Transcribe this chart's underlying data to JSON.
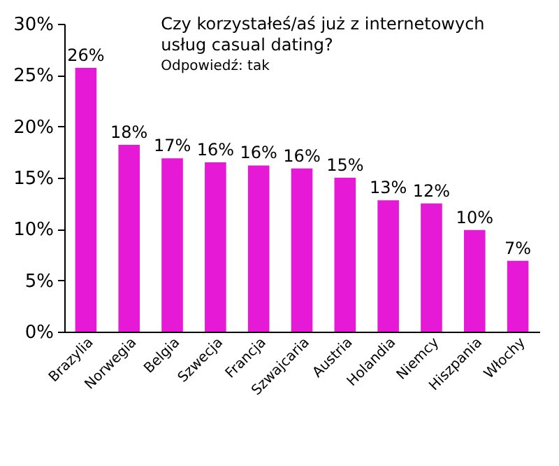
{
  "chart_data": {
    "type": "bar",
    "title": "Czy korzystałeś/aś już z internetowych usług casual dating?",
    "subtitle": "Odpowiedź: tak",
    "categories": [
      "Brazylia",
      "Norwegia",
      "Belgia",
      "Szwecja",
      "Francja",
      "Szwajcaria",
      "Austria",
      "Holandia",
      "Niemcy",
      "Hiszpania",
      "Włochy"
    ],
    "values": [
      25.7,
      18.2,
      16.9,
      16.5,
      16.2,
      15.9,
      15.0,
      12.8,
      12.5,
      9.9,
      6.9
    ],
    "value_labels": [
      "26%",
      "18%",
      "17%",
      "16%",
      "16%",
      "16%",
      "15%",
      "13%",
      "12%",
      "10%",
      "7%"
    ],
    "color": "#e619d6",
    "ylim": [
      0,
      30
    ],
    "yticks": [
      {
        "value": 0,
        "label": "0%"
      },
      {
        "value": 5,
        "label": "5%"
      },
      {
        "value": 10,
        "label": "10%"
      },
      {
        "value": 15,
        "label": "15%"
      },
      {
        "value": 20,
        "label": "20%"
      },
      {
        "value": 25,
        "label": "25%"
      },
      {
        "value": 30,
        "label": "30%"
      }
    ],
    "grid": false
  }
}
